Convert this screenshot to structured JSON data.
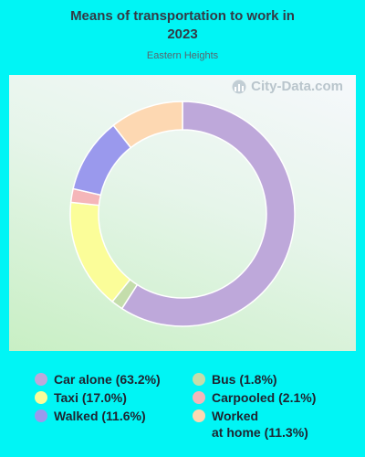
{
  "chart_data": {
    "type": "donut",
    "title": "Means of transportation to work in\n2023",
    "subtitle": "Eastern Heights",
    "watermark": "City-Data.com",
    "slices": [
      {
        "label": "Car alone",
        "value": 63.2,
        "legend": "Car alone (63.2%)",
        "color": "#bea8da"
      },
      {
        "label": "Bus",
        "value": 1.8,
        "legend": "Bus (1.8%)",
        "color": "#c4ddab"
      },
      {
        "label": "Taxi",
        "value": 17.0,
        "legend": "Taxi (17.0%)",
        "color": "#fbfd99"
      },
      {
        "label": "Carpooled",
        "value": 2.1,
        "legend": "Carpooled (2.1%)",
        "color": "#f5b6b9"
      },
      {
        "label": "Walked",
        "value": 11.6,
        "legend": "Walked (11.6%)",
        "color": "#9a99ed"
      },
      {
        "label": "Worked at home",
        "value": 11.3,
        "legend": "Worked\nat home (11.3%)",
        "color": "#fdd8b2"
      }
    ],
    "legend_order": [
      "Car alone",
      "Bus",
      "Taxi",
      "Carpooled",
      "Walked",
      "Worked at home"
    ],
    "grid": false,
    "legend_position": "bottom"
  }
}
